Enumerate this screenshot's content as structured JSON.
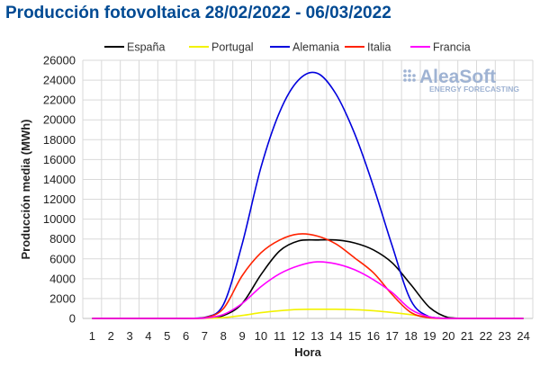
{
  "title": "Producción fotovoltaica 28/02/2022 - 06/03/2022",
  "logo": {
    "name": "AleaSoft",
    "tagline": "ENERGY FORECASTING"
  },
  "chart_data": {
    "type": "line",
    "xlabel": "Hora",
    "ylabel": "Producción media (MWh)",
    "x": [
      1,
      2,
      3,
      4,
      5,
      6,
      7,
      8,
      9,
      10,
      11,
      12,
      13,
      14,
      15,
      16,
      17,
      18,
      19,
      20,
      21,
      22,
      23,
      24
    ],
    "ylim": [
      0,
      26000
    ],
    "yticks": [
      0,
      2000,
      4000,
      6000,
      8000,
      10000,
      12000,
      14000,
      16000,
      18000,
      20000,
      22000,
      24000,
      26000
    ],
    "grid": true,
    "legend_position": "top",
    "series": [
      {
        "name": "España",
        "color": "#000000",
        "values": [
          0,
          0,
          0,
          0,
          0,
          0,
          30,
          300,
          1500,
          4400,
          6800,
          7800,
          7900,
          7900,
          7600,
          6900,
          5600,
          3400,
          1100,
          80,
          0,
          0,
          0,
          0
        ]
      },
      {
        "name": "Portugal",
        "color": "#f2f200",
        "values": [
          0,
          0,
          0,
          0,
          0,
          0,
          5,
          80,
          300,
          580,
          780,
          900,
          920,
          920,
          880,
          780,
          600,
          380,
          110,
          10,
          0,
          0,
          0,
          0
        ]
      },
      {
        "name": "Alemania",
        "color": "#0000dd",
        "values": [
          0,
          0,
          0,
          0,
          0,
          0,
          100,
          1400,
          7500,
          15200,
          20800,
          24000,
          24700,
          22600,
          18600,
          13300,
          7300,
          1800,
          150,
          0,
          0,
          0,
          0,
          0
        ]
      },
      {
        "name": "Italia",
        "color": "#ff2200",
        "values": [
          0,
          0,
          0,
          0,
          0,
          0,
          60,
          1000,
          4300,
          6600,
          7900,
          8500,
          8300,
          7500,
          6100,
          4600,
          2400,
          600,
          60,
          0,
          0,
          0,
          0,
          0
        ]
      },
      {
        "name": "Francia",
        "color": "#ff00ff",
        "values": [
          0,
          0,
          0,
          0,
          0,
          0,
          30,
          400,
          1500,
          3200,
          4500,
          5300,
          5700,
          5500,
          4900,
          3900,
          2600,
          900,
          150,
          0,
          0,
          0,
          0,
          0
        ]
      }
    ]
  }
}
